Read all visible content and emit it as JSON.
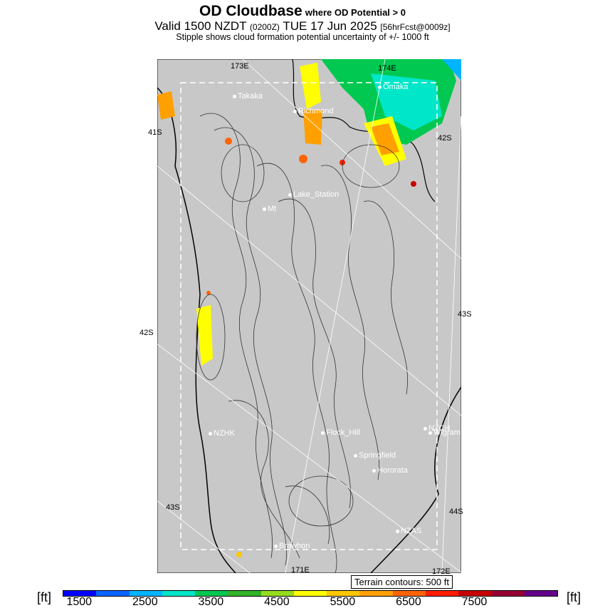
{
  "header": {
    "title": "OD Cloudbase",
    "title_suffix": "where OD Potential > 0",
    "valid_a": "Valid 1500 NZDT",
    "valid_utc": "(0200Z)",
    "valid_b": "TUE 17 Jun 2025",
    "fcst": "[56hrFcst@0009z]",
    "subtitle": "Stipple shows cloud formation potential uncertainty of +/- 1000 ft"
  },
  "map": {
    "land_color": "#c8c8c8",
    "axis_labels": {
      "top_left": "173E",
      "top_right": "174E",
      "bottom_mid": "171E",
      "bottom_right": "172E",
      "left_upper": "41S",
      "left_mid": "42S",
      "left_lower": "43S",
      "right_upper": "42S",
      "right_mid": "43S",
      "right_lower": "44S"
    },
    "towns": [
      {
        "name": "Omaka"
      },
      {
        "name": "Takaka"
      },
      {
        "name": "Richmond"
      },
      {
        "name": "Lake_Station"
      },
      {
        "name": "Mt"
      },
      {
        "name": "NZHK"
      },
      {
        "name": "Flock_Hill"
      },
      {
        "name": "NZCH"
      },
      {
        "name": "Wigram"
      },
      {
        "name": "Springfield"
      },
      {
        "name": "Hororata"
      },
      {
        "name": "NZAS"
      },
      {
        "name": "Brawhon"
      }
    ],
    "terrain_note": "Terrain contours: 500 ft"
  },
  "colorbar": {
    "unit": "[ft]",
    "colors": [
      "#0000ff",
      "#0a64ff",
      "#00b4ff",
      "#00e6c8",
      "#00c850",
      "#32b428",
      "#96dc1e",
      "#ffff00",
      "#ffc800",
      "#ffa000",
      "#ff6400",
      "#ff1e00",
      "#c80000",
      "#960032",
      "#64008c"
    ],
    "ticks": [
      "1500",
      "2500",
      "3500",
      "4500",
      "5500",
      "6500",
      "7500"
    ]
  }
}
